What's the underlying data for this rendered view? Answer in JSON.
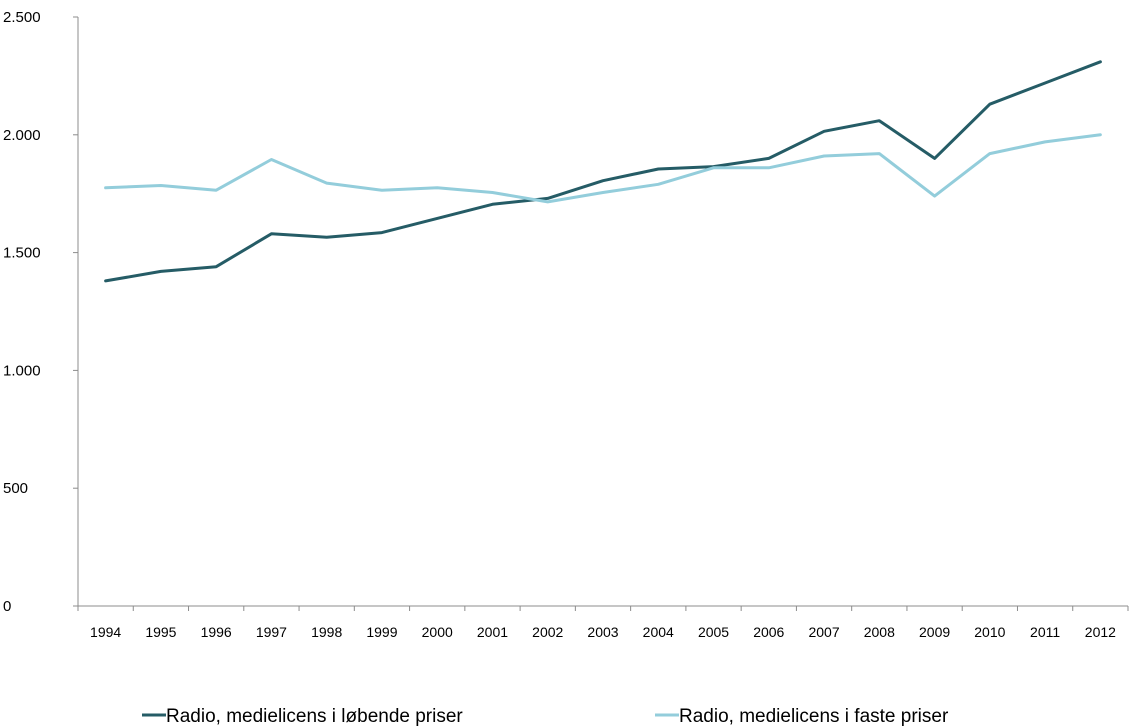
{
  "chart_data": {
    "type": "line",
    "title": "",
    "xlabel": "",
    "ylabel": "",
    "categories": [
      "1994",
      "1995",
      "1996",
      "1997",
      "1998",
      "1999",
      "2000",
      "2001",
      "2002",
      "2003",
      "2004",
      "2005",
      "2006",
      "2007",
      "2008",
      "2009",
      "2010",
      "2011",
      "2012"
    ],
    "ylim": [
      0,
      2500
    ],
    "yticks": [
      0,
      500,
      1000,
      1500,
      2000,
      2500
    ],
    "ytick_labels": [
      "0",
      "500",
      "1.000",
      "1.500",
      "2.000",
      "2.500"
    ],
    "grid": false,
    "legend_position": "bottom",
    "series": [
      {
        "name": "Radio, medielicens i løbende priser",
        "color": "#255c66",
        "values": [
          1380,
          1420,
          1440,
          1580,
          1565,
          1585,
          1645,
          1705,
          1730,
          1805,
          1855,
          1865,
          1900,
          2015,
          2060,
          1900,
          2130,
          2220,
          2310
        ]
      },
      {
        "name": "Radio, medielicens i faste priser",
        "color": "#93cddb",
        "values": [
          1775,
          1785,
          1765,
          1895,
          1795,
          1765,
          1775,
          1755,
          1715,
          1755,
          1790,
          1860,
          1860,
          1910,
          1920,
          1740,
          1920,
          1970,
          2000
        ]
      }
    ]
  }
}
